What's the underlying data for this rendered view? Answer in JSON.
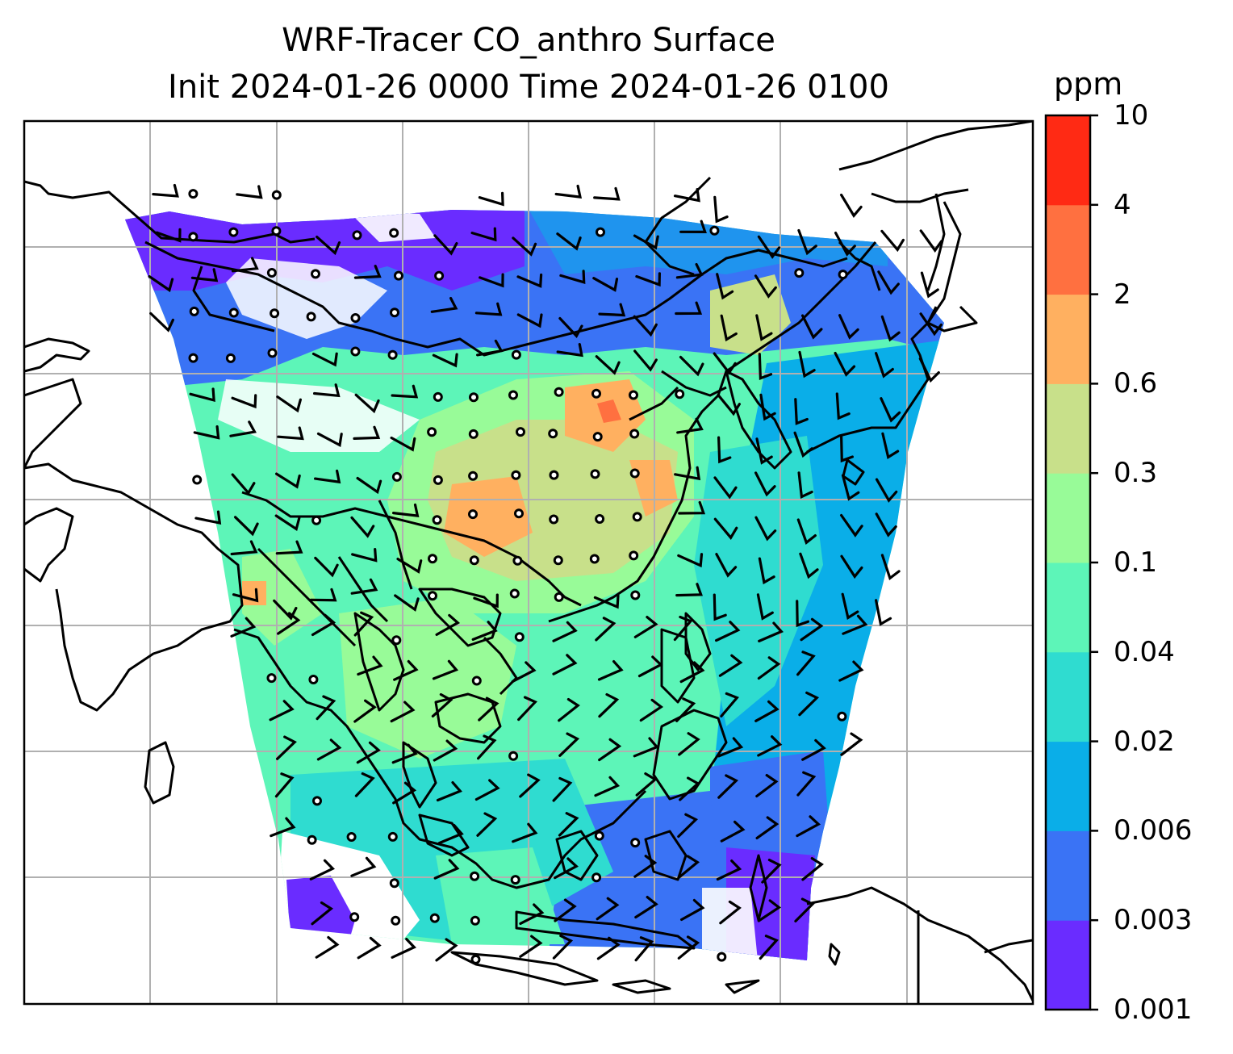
{
  "title_line1": "WRF-Tracer CO_anthro Surface",
  "title_line2": "Init 2024-01-26 0000 Time 2024-01-26 0100",
  "colorbar": {
    "unit": "ppm",
    "levels": [
      "0.001",
      "0.003",
      "0.006",
      "0.02",
      "0.04",
      "0.1",
      "0.3",
      "0.6",
      "2",
      "4",
      "10"
    ],
    "colors": [
      "#6a2cff",
      "#3a73f5",
      "#0aaee8",
      "#2fdcd0",
      "#5df5b8",
      "#98fb98",
      "#c8e08a",
      "#ffb060",
      "#ff7040",
      "#ff2a14"
    ]
  },
  "map": {
    "field": "CO_anthro",
    "level": "Surface",
    "gridlines": true,
    "overlays": [
      "coastlines",
      "country-borders",
      "wind-barbs",
      "calm-circles"
    ]
  }
}
